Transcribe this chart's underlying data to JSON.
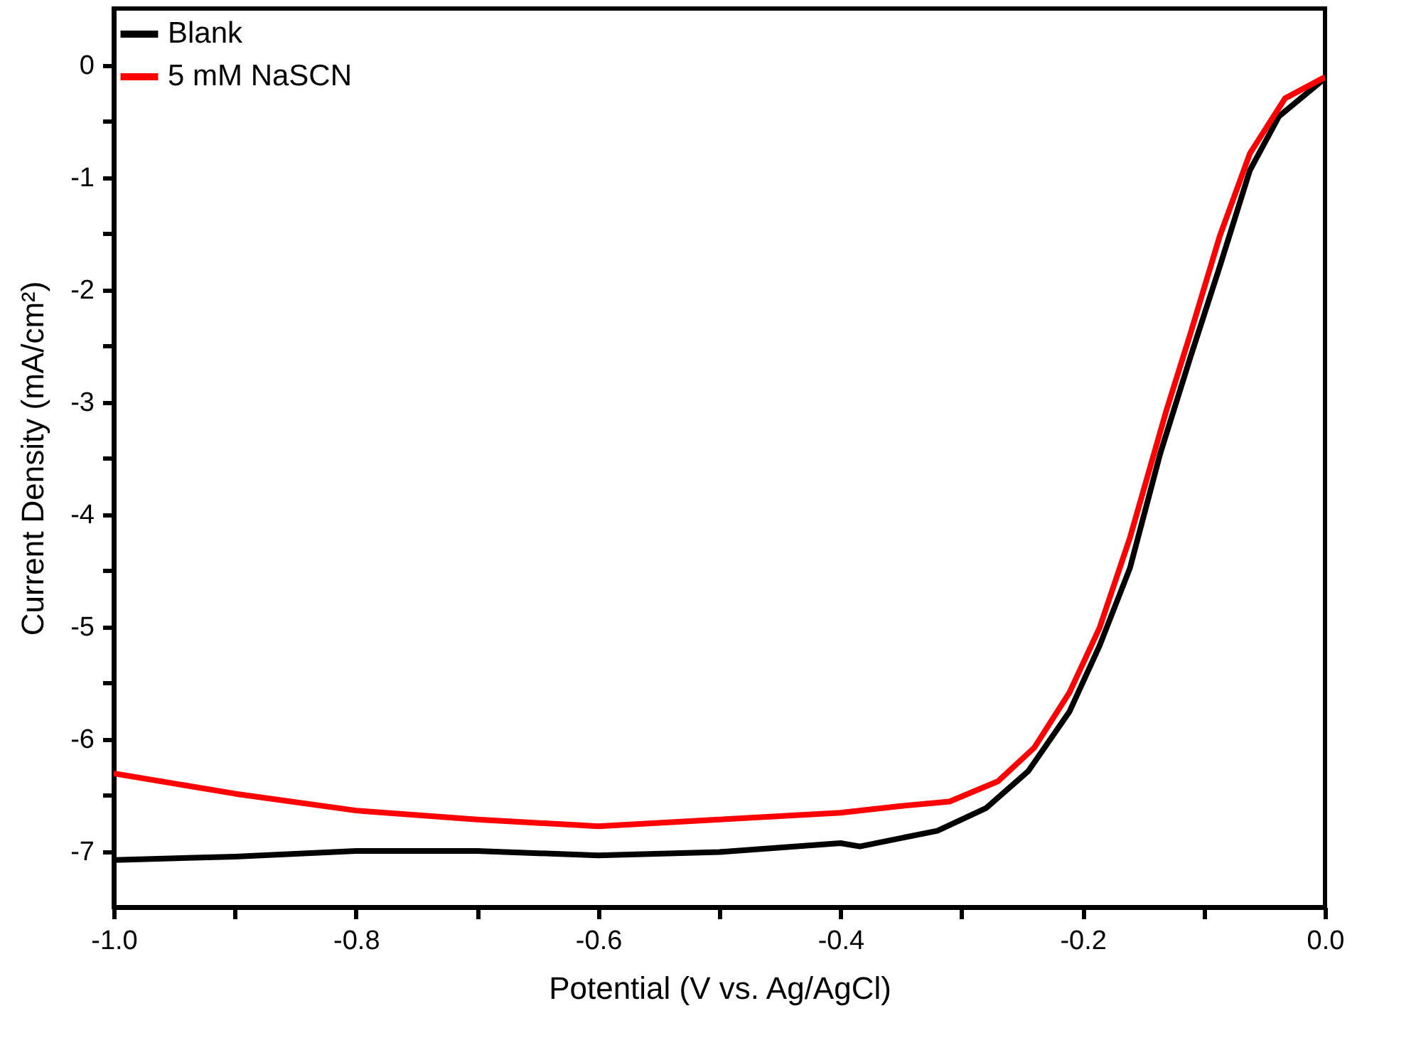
{
  "chart_data": {
    "type": "line",
    "xlabel": "Potential (V vs. Ag/AgCl)",
    "ylabel": "Current Density (mA/cm²)",
    "xlim": [
      -1.0,
      0.0
    ],
    "ylim": [
      -7.5,
      0.5
    ],
    "xticks": [
      {
        "value": -1.0,
        "label": "-1.0"
      },
      {
        "value": -0.9,
        "label": null
      },
      {
        "value": -0.8,
        "label": "-0.8"
      },
      {
        "value": -0.7,
        "label": null
      },
      {
        "value": -0.6,
        "label": "-0.6"
      },
      {
        "value": -0.5,
        "label": null
      },
      {
        "value": -0.4,
        "label": "-0.4"
      },
      {
        "value": -0.3,
        "label": null
      },
      {
        "value": -0.2,
        "label": "-0.2"
      },
      {
        "value": -0.1,
        "label": null
      },
      {
        "value": 0.0,
        "label": "0.0"
      }
    ],
    "yticks": [
      0,
      {
        "value": -0.5,
        "label": null
      },
      -1,
      {
        "value": -1.5,
        "label": null
      },
      -2,
      {
        "value": -2.5,
        "label": null
      },
      -3,
      {
        "value": -3.5,
        "label": null
      },
      -4,
      {
        "value": -4.5,
        "label": null
      },
      -5,
      {
        "value": -5.5,
        "label": null
      },
      -6,
      {
        "value": -6.5,
        "label": null
      },
      -7
    ],
    "grid": false,
    "legend": "top left",
    "marker": "none",
    "line_style": "solid",
    "series": [
      {
        "name": "Blank",
        "color": "#000000",
        "x": [
          -1.0,
          -0.9,
          -0.8,
          -0.7,
          -0.6,
          -0.5,
          -0.45,
          -0.4,
          -0.384,
          -0.32,
          -0.28,
          -0.245,
          -0.211,
          -0.186,
          -0.161,
          -0.136,
          -0.111,
          -0.087,
          -0.062,
          -0.038,
          0.0
        ],
        "values": [
          -7.08,
          -7.05,
          -7.0,
          -7.0,
          -7.04,
          -7.01,
          -6.97,
          -6.93,
          -6.96,
          -6.82,
          -6.62,
          -6.29,
          -5.76,
          -5.17,
          -4.48,
          -3.46,
          -2.6,
          -1.8,
          -0.94,
          -0.46,
          -0.12
        ]
      },
      {
        "name": "5 mM NaSCN",
        "color": "#ff0000",
        "x": [
          -1.0,
          -0.9,
          -0.8,
          -0.7,
          -0.6,
          -0.5,
          -0.4,
          -0.35,
          -0.31,
          -0.27,
          -0.24,
          -0.211,
          -0.186,
          -0.161,
          -0.131,
          -0.111,
          -0.087,
          -0.062,
          -0.033,
          0.0
        ],
        "values": [
          -6.31,
          -6.49,
          -6.64,
          -6.72,
          -6.78,
          -6.72,
          -6.66,
          -6.6,
          -6.56,
          -6.38,
          -6.08,
          -5.59,
          -5.01,
          -4.21,
          -3.08,
          -2.39,
          -1.53,
          -0.79,
          -0.3,
          -0.11
        ]
      }
    ]
  }
}
